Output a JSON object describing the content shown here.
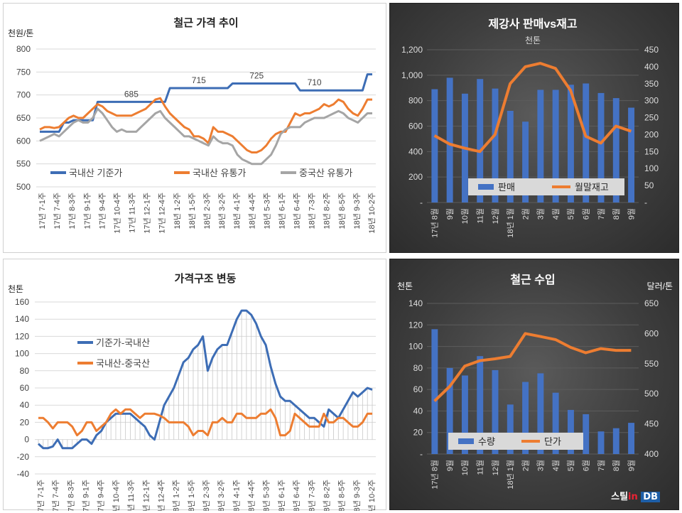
{
  "colors": {
    "blue": "#3d6db5",
    "orange": "#ed7d31",
    "gray": "#a5a5a5",
    "bar": "#4472c4",
    "dark_line": "#ed7d31"
  },
  "watermark": {
    "prefix": "스틸",
    "in": "in",
    "suffix": "DB"
  },
  "chart_data": [
    {
      "type": "line",
      "title": "철근 가격 추이",
      "ylabel": "천원/톤",
      "ylim": [
        500,
        800
      ],
      "yticks": [
        "500",
        "550",
        "600",
        "650",
        "700",
        "750",
        "800"
      ],
      "tick_labels": [
        "17년 7-1주",
        "17년 7-4주",
        "17년 8-3주",
        "17년 9-1주",
        "17년 9-4주",
        "17년 10-4주",
        "17년 11-3주",
        "17년 12-1주",
        "17년 12-4주",
        "18년 1-2주",
        "18년 1-5주",
        "18년 2-3주",
        "18년 3-2주",
        "18년 4-1주",
        "18년 4-4주",
        "18년 5-3주",
        "18년 6-1주",
        "18년 6-4주",
        "18년 7-3주",
        "18년 8-2주",
        "18년 8-5주",
        "18년 9-3주",
        "18년 10-2주"
      ],
      "annotations": [
        {
          "text": "685",
          "x": 19,
          "y": 685
        },
        {
          "text": "715",
          "x": 33,
          "y": 715
        },
        {
          "text": "725",
          "x": 45,
          "y": 725
        },
        {
          "text": "710",
          "x": 57,
          "y": 710
        }
      ],
      "legend_position": "bottom",
      "series": [
        {
          "name": "국내산 기준가",
          "color": "#3d6db5",
          "values": [
            620,
            620,
            620,
            620,
            620,
            640,
            640,
            645,
            645,
            645,
            645,
            645,
            685,
            685,
            685,
            685,
            685,
            685,
            685,
            685,
            685,
            685,
            685,
            685,
            685,
            685,
            685,
            715,
            715,
            715,
            715,
            715,
            715,
            715,
            715,
            715,
            715,
            715,
            715,
            715,
            725,
            725,
            725,
            725,
            725,
            725,
            725,
            725,
            725,
            725,
            725,
            725,
            725,
            725,
            710,
            710,
            710,
            710,
            710,
            710,
            710,
            710,
            710,
            710,
            710,
            710,
            710,
            710,
            745,
            745
          ]
        },
        {
          "name": "국내산 유통가",
          "color": "#ed7d31",
          "values": [
            625,
            630,
            630,
            628,
            630,
            640,
            650,
            655,
            650,
            650,
            660,
            670,
            680,
            675,
            665,
            660,
            655,
            655,
            655,
            655,
            660,
            665,
            670,
            680,
            690,
            693,
            675,
            660,
            650,
            640,
            630,
            625,
            610,
            610,
            605,
            595,
            630,
            620,
            620,
            615,
            610,
            600,
            590,
            580,
            575,
            575,
            580,
            590,
            605,
            615,
            620,
            620,
            640,
            660,
            655,
            660,
            660,
            665,
            670,
            680,
            675,
            680,
            690,
            685,
            670,
            660,
            655,
            670,
            690,
            690
          ]
        },
        {
          "name": "중국산 유통가",
          "color": "#a5a5a5",
          "values": [
            600,
            605,
            610,
            615,
            610,
            620,
            630,
            640,
            645,
            640,
            640,
            650,
            670,
            660,
            645,
            630,
            620,
            625,
            620,
            620,
            620,
            630,
            640,
            650,
            660,
            665,
            650,
            640,
            630,
            620,
            610,
            610,
            605,
            600,
            595,
            590,
            610,
            600,
            595,
            595,
            590,
            570,
            560,
            555,
            550,
            550,
            550,
            560,
            570,
            590,
            615,
            625,
            630,
            630,
            630,
            640,
            645,
            650,
            650,
            650,
            655,
            660,
            665,
            660,
            650,
            645,
            640,
            650,
            660,
            660
          ]
        }
      ]
    },
    {
      "type": "bar",
      "title": "제강사 판매vs재고",
      "subtitle": "천톤",
      "ylim": [
        0,
        1200
      ],
      "yticks": [
        "-",
        "200",
        "400",
        "600",
        "800",
        "1,000",
        "1,200"
      ],
      "y2lim": [
        0,
        450
      ],
      "y2ticks": [
        "-",
        "50",
        "100",
        "150",
        "200",
        "250",
        "300",
        "350",
        "400",
        "450"
      ],
      "categories": [
        "17년 8월",
        "9월",
        "10월",
        "11월",
        "12월",
        "18년 1월",
        "2월",
        "3월",
        "4월",
        "5월",
        "6월",
        "7월",
        "8월",
        "9월"
      ],
      "legend_position": "bottom",
      "series": [
        {
          "name": "판매",
          "type": "bar",
          "axis": "left",
          "values": [
            890,
            980,
            855,
            970,
            895,
            720,
            635,
            885,
            885,
            925,
            935,
            860,
            820,
            745
          ]
        },
        {
          "name": "월말재고",
          "type": "line",
          "axis": "right",
          "values": [
            197,
            172,
            160,
            150,
            200,
            350,
            400,
            410,
            395,
            330,
            195,
            175,
            225,
            210
          ]
        }
      ]
    },
    {
      "type": "area",
      "title": "가격구조 변동",
      "ylabel": "천톤",
      "ylim": [
        -40,
        160
      ],
      "yticks": [
        "-40",
        "-20",
        "0",
        "20",
        "40",
        "60",
        "80",
        "100",
        "120",
        "140",
        "160"
      ],
      "tick_labels": [
        "17년 7-1주",
        "17년 7-4주",
        "17년 8-3주",
        "17년 9-1주",
        "17년 9-4주",
        "17년 10-4주",
        "17년 11-3주",
        "17년 12-1주",
        "17년 12-4주",
        "18년 1-2주",
        "18년 1-5주",
        "18년 2-3주",
        "18년 3-2주",
        "18년 4-1주",
        "18년 4-4주",
        "18년 5-3주",
        "18년 6-1주",
        "18년 6-4주",
        "18년 7-3주",
        "18년 8-2주",
        "18년 8-5주",
        "18년 9-3주",
        "18년 10-2주"
      ],
      "legend_position": "left",
      "series": [
        {
          "name": "기준가-국내산",
          "color": "#3d6db5",
          "values": [
            -5,
            -10,
            -10,
            -8,
            0,
            -10,
            -10,
            -10,
            -5,
            0,
            0,
            -5,
            5,
            10,
            20,
            25,
            30,
            30,
            30,
            30,
            25,
            20,
            15,
            5,
            0,
            20,
            40,
            50,
            60,
            75,
            90,
            95,
            105,
            110,
            120,
            80,
            95,
            105,
            110,
            110,
            125,
            140,
            150,
            150,
            145,
            135,
            120,
            110,
            85,
            65,
            50,
            45,
            45,
            40,
            35,
            30,
            25,
            25,
            20,
            15,
            35,
            30,
            25,
            35,
            45,
            55,
            50,
            55,
            60,
            58
          ]
        },
        {
          "name": "국내산-중국산",
          "color": "#ed7d31",
          "values": [
            25,
            25,
            20,
            13,
            20,
            20,
            20,
            15,
            5,
            10,
            20,
            20,
            10,
            15,
            20,
            30,
            35,
            30,
            35,
            35,
            30,
            25,
            30,
            30,
            30,
            28,
            25,
            20,
            20,
            20,
            20,
            15,
            5,
            10,
            10,
            5,
            20,
            20,
            25,
            20,
            20,
            30,
            30,
            25,
            25,
            25,
            30,
            30,
            35,
            25,
            5,
            5,
            10,
            30,
            25,
            20,
            15,
            15,
            15,
            30,
            20,
            20,
            25,
            25,
            20,
            15,
            15,
            20,
            30,
            30
          ]
        }
      ]
    },
    {
      "type": "bar",
      "title": "철근 수입",
      "ylabel": "천톤",
      "y2label": "달러/톤",
      "ylim": [
        0,
        140
      ],
      "yticks": [
        "-",
        "20",
        "40",
        "60",
        "80",
        "100",
        "120",
        "140"
      ],
      "y2lim": [
        400,
        650
      ],
      "y2ticks": [
        "400",
        "450",
        "500",
        "550",
        "600",
        "650"
      ],
      "categories": [
        "17년 8월",
        "9월",
        "10월",
        "11월",
        "12월",
        "18년 1월",
        "2월",
        "3월",
        "4월",
        "5월",
        "6월",
        "7월",
        "8월",
        "9월"
      ],
      "legend_position": "bottom",
      "series": [
        {
          "name": "수량",
          "type": "bar",
          "axis": "left",
          "values": [
            116,
            80,
            73,
            91,
            78,
            46,
            67,
            75,
            57,
            41,
            37,
            21,
            24,
            29
          ]
        },
        {
          "name": "단가",
          "type": "line",
          "axis": "right",
          "values": [
            488,
            512,
            546,
            555,
            558,
            562,
            600,
            595,
            590,
            577,
            568,
            575,
            572,
            572
          ]
        }
      ]
    }
  ]
}
